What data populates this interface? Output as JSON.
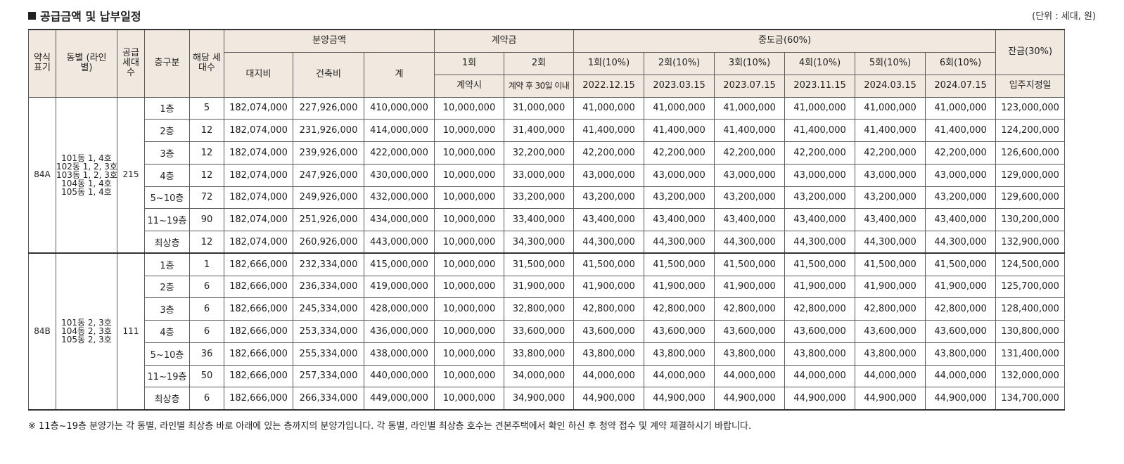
{
  "title": "공급금액 및 납부일정",
  "unit": "(단위 : 세대, 원)",
  "headers": {
    "type": "약식 표기",
    "dong": "동별 (라인별)",
    "supply": "공급 세대 수",
    "floor": "층구분",
    "units": "해당 세대수",
    "sale": "분양금액",
    "land": "대지비",
    "building": "건축비",
    "total": "계",
    "contract": "계약금",
    "c1": "1회",
    "c2": "2회",
    "c1_when": "계약시",
    "c2_when": "계약 후 30일 이내",
    "middle": "중도금(60%)",
    "m": [
      "1회(10%)",
      "2회(10%)",
      "3회(10%)",
      "4회(10%)",
      "5회(10%)",
      "6회(10%)"
    ],
    "m_dates": [
      "2022.12.15",
      "2023.03.15",
      "2023.07.15",
      "2023.11.15",
      "2024.03.15",
      "2024.07.15"
    ],
    "balance": "잔금(30%)",
    "balance_when": "입주지정일"
  },
  "groups": [
    {
      "type": "84A",
      "dong_lines": [
        "101동 1, 4호",
        "102동 1, 2, 3호",
        "103동 1, 2, 3호",
        "104동 1, 4호",
        "105동 1, 4호"
      ],
      "supply": "215",
      "rows": [
        [
          "1층",
          "5",
          "182,074,000",
          "227,926,000",
          "410,000,000",
          "10,000,000",
          "31,000,000",
          "41,000,000",
          "41,000,000",
          "41,000,000",
          "41,000,000",
          "41,000,000",
          "41,000,000",
          "123,000,000"
        ],
        [
          "2층",
          "12",
          "182,074,000",
          "231,926,000",
          "414,000,000",
          "10,000,000",
          "31,400,000",
          "41,400,000",
          "41,400,000",
          "41,400,000",
          "41,400,000",
          "41,400,000",
          "41,400,000",
          "124,200,000"
        ],
        [
          "3층",
          "12",
          "182,074,000",
          "239,926,000",
          "422,000,000",
          "10,000,000",
          "32,200,000",
          "42,200,000",
          "42,200,000",
          "42,200,000",
          "42,200,000",
          "42,200,000",
          "42,200,000",
          "126,600,000"
        ],
        [
          "4층",
          "12",
          "182,074,000",
          "247,926,000",
          "430,000,000",
          "10,000,000",
          "33,000,000",
          "43,000,000",
          "43,000,000",
          "43,000,000",
          "43,000,000",
          "43,000,000",
          "43,000,000",
          "129,000,000"
        ],
        [
          "5~10층",
          "72",
          "182,074,000",
          "249,926,000",
          "432,000,000",
          "10,000,000",
          "33,200,000",
          "43,200,000",
          "43,200,000",
          "43,200,000",
          "43,200,000",
          "43,200,000",
          "43,200,000",
          "129,600,000"
        ],
        [
          "11~19층",
          "90",
          "182,074,000",
          "251,926,000",
          "434,000,000",
          "10,000,000",
          "33,400,000",
          "43,400,000",
          "43,400,000",
          "43,400,000",
          "43,400,000",
          "43,400,000",
          "43,400,000",
          "130,200,000"
        ],
        [
          "최상층",
          "12",
          "182,074,000",
          "260,926,000",
          "443,000,000",
          "10,000,000",
          "34,300,000",
          "44,300,000",
          "44,300,000",
          "44,300,000",
          "44,300,000",
          "44,300,000",
          "44,300,000",
          "132,900,000"
        ]
      ]
    },
    {
      "type": "84B",
      "dong_lines": [
        "101동 2, 3호",
        "104동 2, 3호",
        "105동 2, 3호"
      ],
      "supply": "111",
      "rows": [
        [
          "1층",
          "1",
          "182,666,000",
          "232,334,000",
          "415,000,000",
          "10,000,000",
          "31,500,000",
          "41,500,000",
          "41,500,000",
          "41,500,000",
          "41,500,000",
          "41,500,000",
          "41,500,000",
          "124,500,000"
        ],
        [
          "2층",
          "6",
          "182,666,000",
          "236,334,000",
          "419,000,000",
          "10,000,000",
          "31,900,000",
          "41,900,000",
          "41,900,000",
          "41,900,000",
          "41,900,000",
          "41,900,000",
          "41,900,000",
          "125,700,000"
        ],
        [
          "3층",
          "6",
          "182,666,000",
          "245,334,000",
          "428,000,000",
          "10,000,000",
          "32,800,000",
          "42,800,000",
          "42,800,000",
          "42,800,000",
          "42,800,000",
          "42,800,000",
          "42,800,000",
          "128,400,000"
        ],
        [
          "4층",
          "6",
          "182,666,000",
          "253,334,000",
          "436,000,000",
          "10,000,000",
          "33,600,000",
          "43,600,000",
          "43,600,000",
          "43,600,000",
          "43,600,000",
          "43,600,000",
          "43,600,000",
          "130,800,000"
        ],
        [
          "5~10층",
          "36",
          "182,666,000",
          "255,334,000",
          "438,000,000",
          "10,000,000",
          "33,800,000",
          "43,800,000",
          "43,800,000",
          "43,800,000",
          "43,800,000",
          "43,800,000",
          "43,800,000",
          "131,400,000"
        ],
        [
          "11~19층",
          "50",
          "182,666,000",
          "257,334,000",
          "440,000,000",
          "10,000,000",
          "34,000,000",
          "44,000,000",
          "44,000,000",
          "44,000,000",
          "44,000,000",
          "44,000,000",
          "44,000,000",
          "132,000,000"
        ],
        [
          "최상층",
          "6",
          "182,666,000",
          "266,334,000",
          "449,000,000",
          "10,000,000",
          "34,900,000",
          "44,900,000",
          "44,900,000",
          "44,900,000",
          "44,900,000",
          "44,900,000",
          "44,900,000",
          "134,700,000"
        ]
      ]
    }
  ],
  "note": "※ 11층~19층 분양가는 각 동별, 라인별 최상층 바로 아래에 있는 층까지의 분양가입니다. 각 동별, 라인별 최상층 호수는 견본주택에서 확인 하신 후 청약 접수 및 계약 체결하시기 바랍니다."
}
